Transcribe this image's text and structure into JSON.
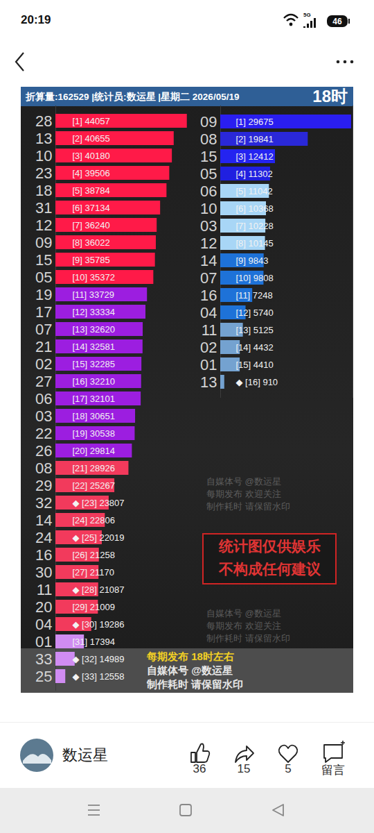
{
  "status_bar": {
    "time": "20:19",
    "network": "5G",
    "battery": "46"
  },
  "header": {
    "text": "折算量:162529 |统计员:数运星 |星期二 2026/05/19",
    "hour": "18时"
  },
  "watermark": [
    "自媒体号 @数运星",
    "每期发布 欢迎关注",
    "制作耗时 请保留水印"
  ],
  "notice": [
    "统计图仅供娱乐",
    "不构成任何建议"
  ],
  "footer": [
    "每期发布 18时左右",
    "自媒体号 @数运星",
    "制作耗时 请保留水印"
  ],
  "post": {
    "author": "数运星",
    "likes": 36,
    "shares": 15,
    "favorites": 5,
    "comment": "留言"
  },
  "chart_data": [
    {
      "type": "bar",
      "orientation": "horizontal",
      "categories": [
        "28",
        "13",
        "10",
        "23",
        "18",
        "31",
        "12",
        "09",
        "15",
        "05",
        "19",
        "17",
        "07",
        "21",
        "02",
        "27",
        "06",
        "03",
        "22",
        "26",
        "08",
        "29",
        "32",
        "14",
        "24",
        "16",
        "30",
        "11",
        "20",
        "04",
        "01",
        "33",
        "25"
      ],
      "values": [
        44057,
        40655,
        40180,
        39506,
        38784,
        37134,
        36240,
        36022,
        35785,
        35372,
        33729,
        33334,
        32620,
        32581,
        32285,
        32210,
        32101,
        30651,
        30538,
        29814,
        28926,
        25267,
        23807,
        22806,
        22019,
        21258,
        21170,
        21087,
        21009,
        19286,
        17394,
        14989,
        12558
      ],
      "value_labels": [
        "[1] 44057",
        "[2] 40655",
        "[3] 40180",
        "[4] 39506",
        "[5] 38784",
        "[6] 37134",
        "[7] 36240",
        "[8] 36022",
        "[9] 35785",
        "[10] 35372",
        "[11] 33729",
        "[12] 33334",
        "[13] 32620",
        "[14] 32581",
        "[15] 32285",
        "[16] 32210",
        "[17] 32101",
        "[18] 30651",
        "[19] 30538",
        "[20] 29814",
        "[21] 28926",
        "[22] 25267",
        "◆ [23] 23807",
        "[24] 22806",
        "◆ [25] 22019",
        "[26] 21258",
        "[27] 21170",
        "◆ [28] 21087",
        "[29] 21009",
        "◆ [30] 19286",
        "[31] 17394",
        "◆ [32] 14989",
        "◆ [33] 12558"
      ],
      "colors": [
        "#ff1a48",
        "#ff1a48",
        "#ff1a48",
        "#ff1a48",
        "#ff1a48",
        "#ff1a48",
        "#ff1a48",
        "#ff1a48",
        "#ff1a48",
        "#ff1a48",
        "#9c1ee0",
        "#9c1ee0",
        "#9c1ee0",
        "#9c1ee0",
        "#9c1ee0",
        "#9c1ee0",
        "#9c1ee0",
        "#9c1ee0",
        "#9c1ee0",
        "#9c1ee0",
        "#f23a5c",
        "#f23a5c",
        "#f23a5c",
        "#f23a5c",
        "#f23a5c",
        "#f23a5c",
        "#f23a5c",
        "#f23a5c",
        "#f23a5c",
        "#f23a5c",
        "#d08cf2",
        "#d08cf2",
        "#d08cf2"
      ],
      "xlim": [
        10000,
        45000
      ],
      "data_labels": true,
      "tick_labels": "y"
    },
    {
      "type": "bar",
      "orientation": "horizontal",
      "categories": [
        "09",
        "08",
        "15",
        "05",
        "06",
        "10",
        "03",
        "12",
        "14",
        "07",
        "16",
        "04",
        "11",
        "02",
        "01",
        "13"
      ],
      "values": [
        29675,
        19841,
        12412,
        11302,
        11042,
        10368,
        10228,
        10145,
        9843,
        9808,
        7248,
        5740,
        5125,
        4432,
        4410,
        910
      ],
      "value_labels": [
        "[1] 29675",
        "[2] 19841",
        "[3] 12412",
        "[4] 11302",
        "[5] 11042",
        "[6] 10368",
        "[7] 10228",
        "[8] 10145",
        "[9] 9843",
        "[10] 9808",
        "[11] 7248",
        "[12] 5740",
        "[13] 5125",
        "[14] 4432",
        "[15] 4410",
        "◆ [16] 910"
      ],
      "colors": [
        "#2a1ef0",
        "#2a28d8",
        "#2424f0",
        "#2020e0",
        "#a8d6f6",
        "#a8d6f6",
        "#a8d6f6",
        "#a8d6f6",
        "#1e72d8",
        "#1e72d8",
        "#1e72d8",
        "#1e72d8",
        "#74a2d0",
        "#74a2d0",
        "#74a2d0",
        "#74a2d0"
      ],
      "xlim": [
        0,
        30000
      ],
      "data_labels": true,
      "tick_labels": "y"
    }
  ]
}
